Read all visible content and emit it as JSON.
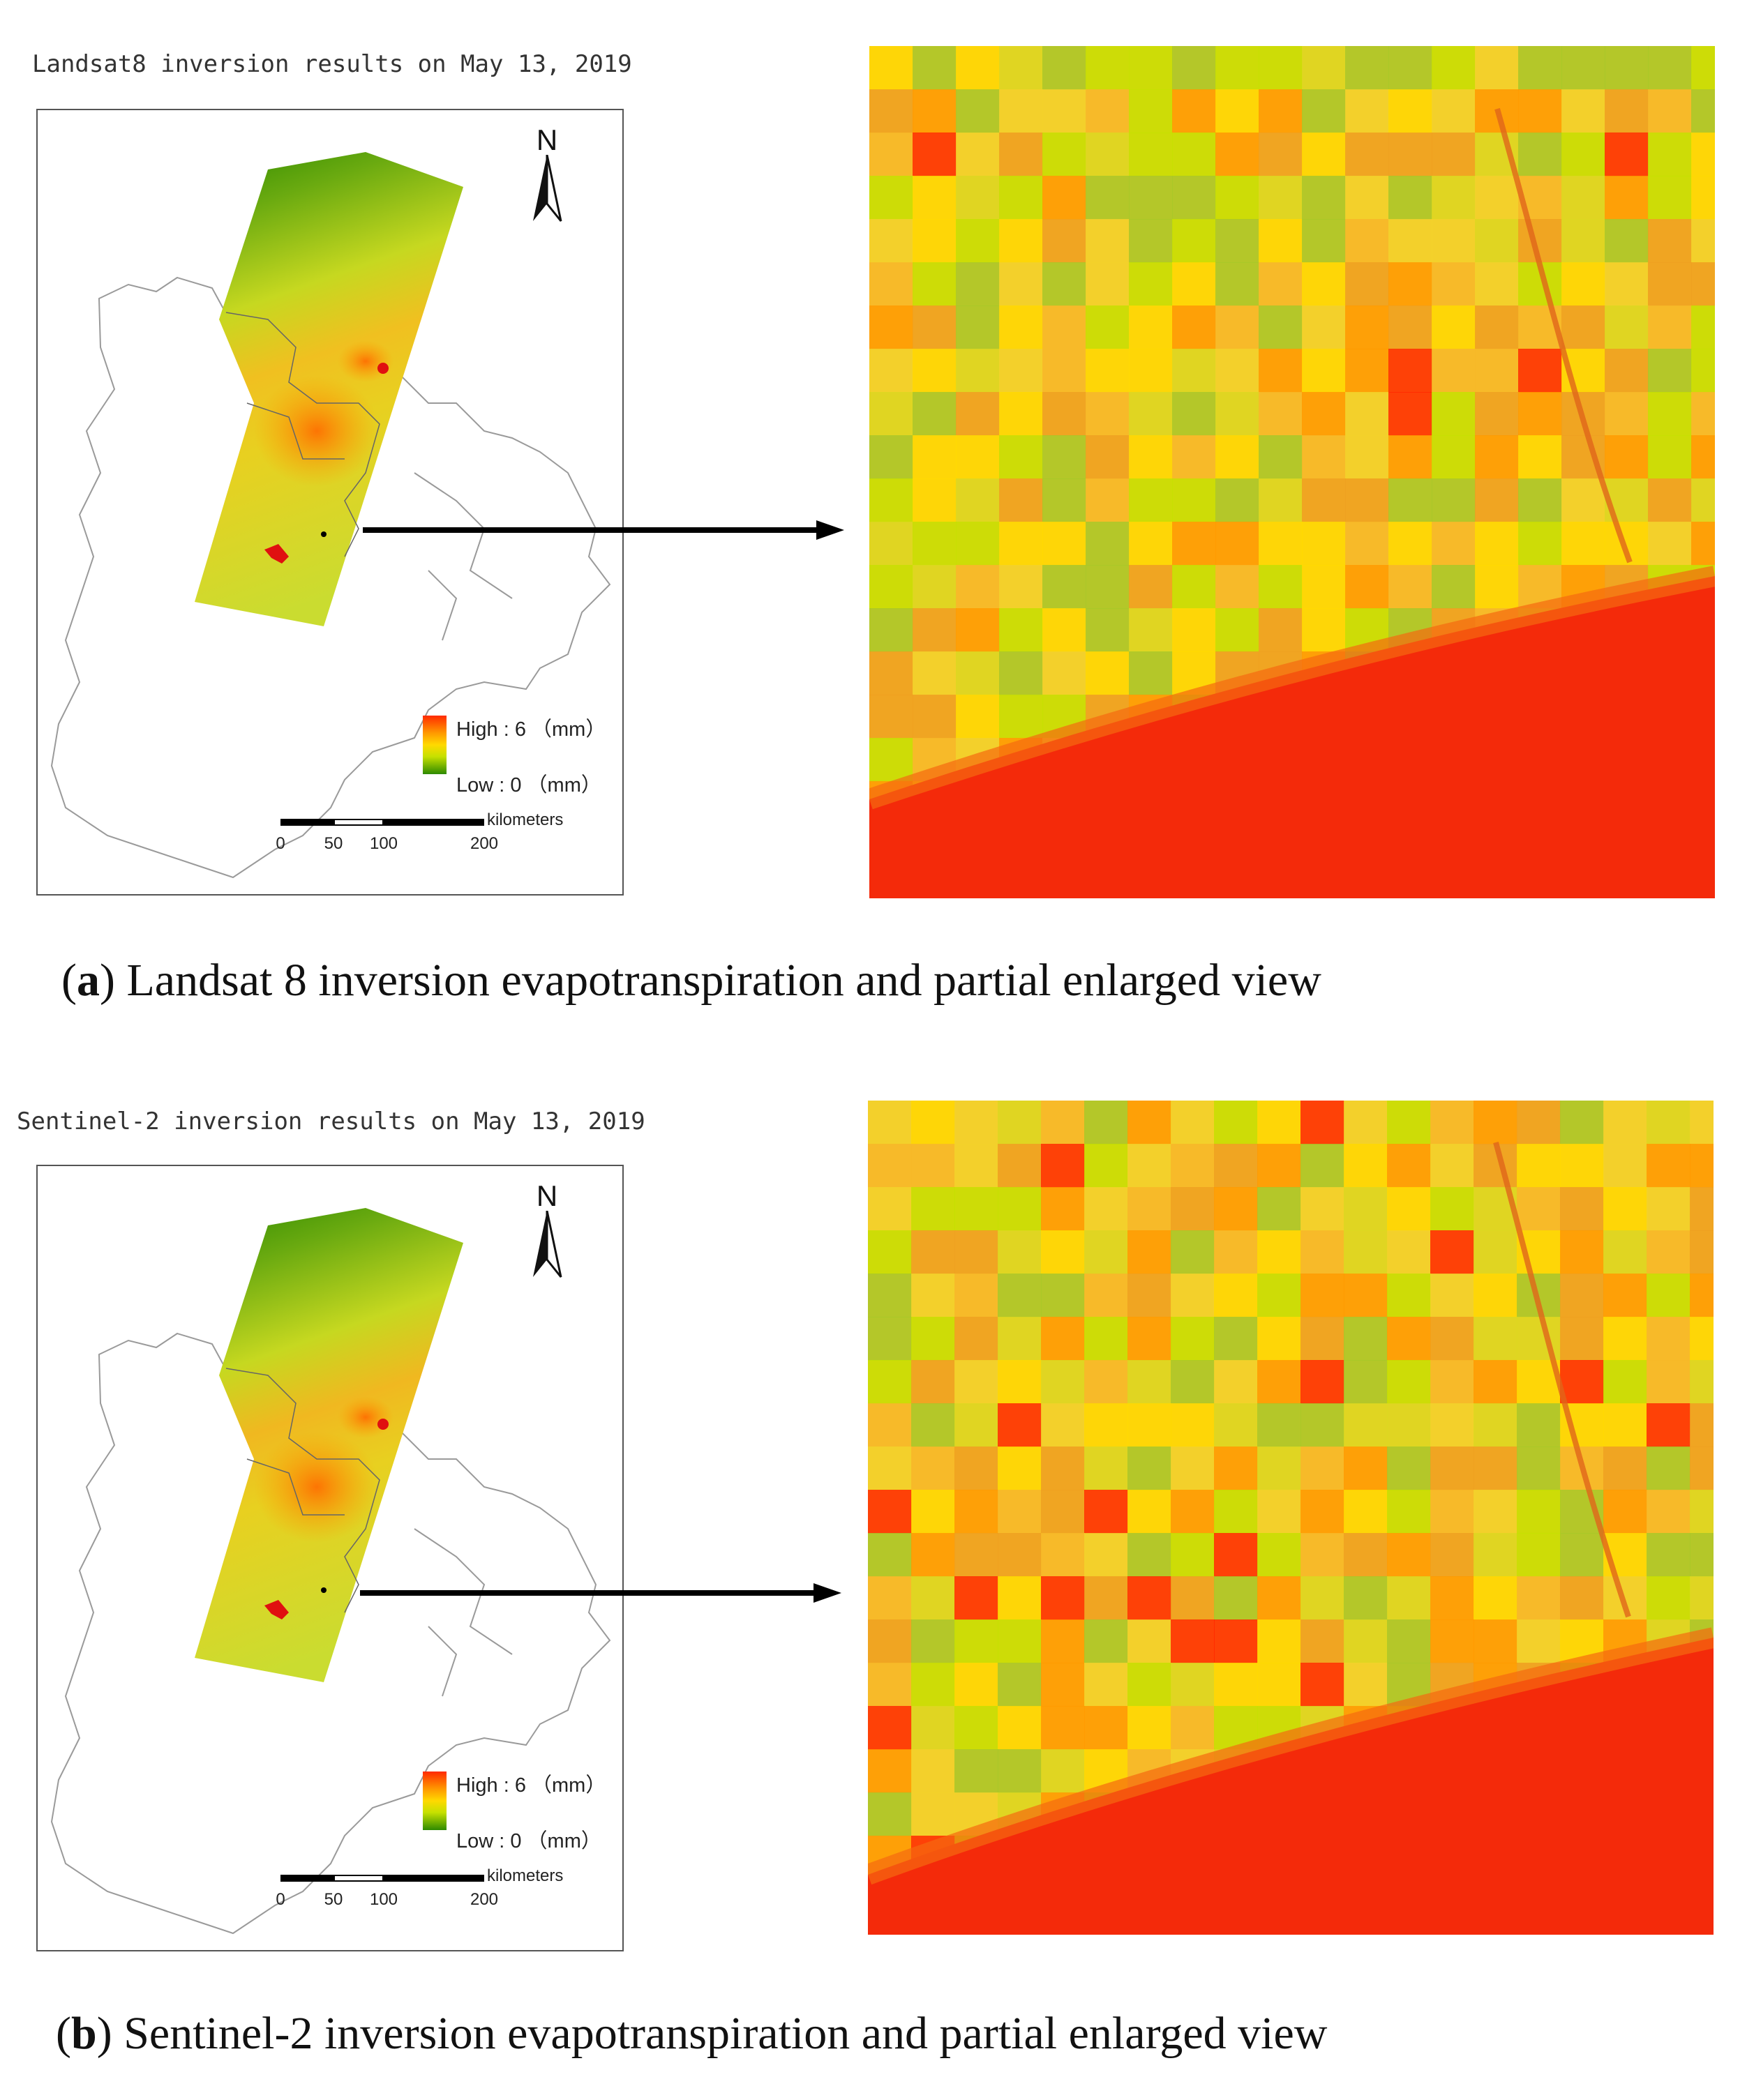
{
  "panels": [
    {
      "id": "a",
      "map_title": "Landsat8 inversion results on May 13, 2019",
      "north_label": "N",
      "legend": {
        "high": "High : 6 （mm）",
        "low": "Low : 0 （mm）"
      },
      "scale": {
        "ticks": [
          "0",
          "50",
          "100",
          "200"
        ],
        "unit": "kilometers"
      },
      "caption_letter": "a",
      "caption_text": "Landsat 8 inversion evapotranspiration and partial enlarged view"
    },
    {
      "id": "b",
      "map_title": "Sentinel-2 inversion results on May 13, 2019",
      "north_label": "N",
      "legend": {
        "high": "High : 6 （mm）",
        "low": "Low : 0 （mm）"
      },
      "scale": {
        "ticks": [
          "0",
          "50",
          "100",
          "200"
        ],
        "unit": "kilometers"
      },
      "caption_letter": "b",
      "caption_text": "Sentinel-2 inversion evapotranspiration and partial enlarged view"
    }
  ],
  "colors": {
    "high": "#ff2a00",
    "mid_high": "#ff9a00",
    "mid": "#ffd900",
    "mid_low": "#c6e000",
    "low": "#2e8a00",
    "river": "#f42a0a"
  }
}
